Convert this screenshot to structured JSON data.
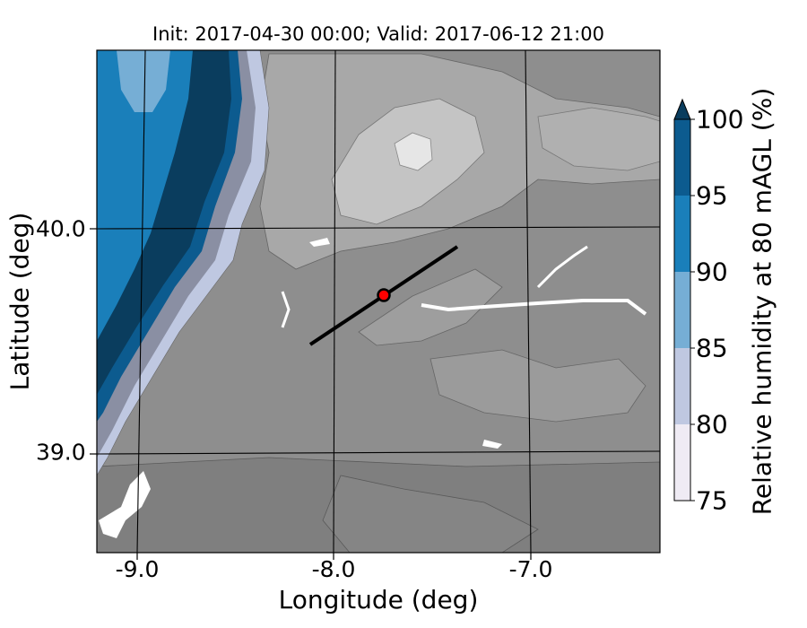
{
  "title": "Init: 2017-04-30 00:00; Valid: 2017-06-12 21:00",
  "xlabel": "Longitude (deg)",
  "ylabel": "Latitude (deg)",
  "x_ticks": [
    "-9.0",
    "-8.0",
    "-7.0"
  ],
  "y_ticks": [
    "40.0",
    "39.0"
  ],
  "colorbar": {
    "label": "Relative humidity at 80 mAGL (%)",
    "ticks": [
      "75",
      "80",
      "85",
      "90",
      "95",
      "100"
    ],
    "colors": [
      "#efebf4",
      "#bfc8e1",
      "#76aed5",
      "#1a7fba",
      "#0c5b8f",
      "#0a3d5e"
    ],
    "extend": "max"
  },
  "chart_data": {
    "type": "heatmap",
    "title": "Init: 2017-04-30 00:00; Valid: 2017-06-12 21:00",
    "xlabel": "Longitude (deg)",
    "ylabel": "Latitude (deg)",
    "xlim": [
      -9.2,
      -6.35
    ],
    "ylim": [
      38.55,
      40.8
    ],
    "variable": "Relative humidity at 80 mAGL (%)",
    "levels": [
      75,
      80,
      85,
      90,
      95,
      100
    ],
    "cross_section_line": {
      "start": [
        -8.12,
        39.49
      ],
      "end": [
        -7.37,
        39.93
      ]
    },
    "marker": {
      "lon": -7.75,
      "lat": 39.7,
      "color": "#ff0000"
    },
    "background_terrain": "grayscale topography contours"
  }
}
